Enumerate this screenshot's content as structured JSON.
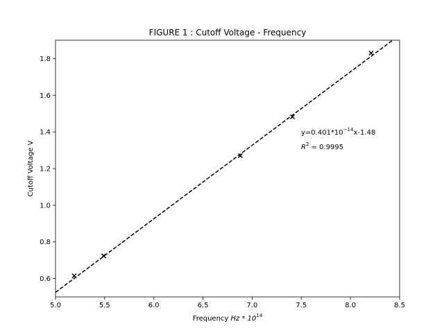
{
  "chart_data": {
    "type": "scatter",
    "title": "FIGURE 1 : Cutoff Voltage - Frequency",
    "xlabel": "Frequency",
    "xlabel_math": "Hz * 10",
    "xlabel_exp": "14",
    "ylabel": "Cutoff Voltage V",
    "xlim": [
      5.0,
      8.5
    ],
    "ylim": [
      0.5,
      1.9
    ],
    "xticks": [
      5.0,
      5.5,
      6.0,
      6.5,
      7.0,
      7.5,
      8.0,
      8.5
    ],
    "xtick_labels": [
      "5.0",
      "5.5",
      "6.0",
      "6.5",
      "7.0",
      "7.5",
      "8.0",
      "8.5"
    ],
    "yticks": [
      0.6,
      0.8,
      1.0,
      1.2,
      1.4,
      1.6,
      1.8
    ],
    "ytick_labels": [
      "0.6",
      "0.8",
      "1.0",
      "1.2",
      "1.4",
      "1.6",
      "1.8"
    ],
    "grid": false,
    "marker": "x",
    "marker_color": "#000000",
    "points": [
      {
        "x": 5.19,
        "y": 0.615
      },
      {
        "x": 5.49,
        "y": 0.724
      },
      {
        "x": 6.88,
        "y": 1.27
      },
      {
        "x": 7.41,
        "y": 1.482
      },
      {
        "x": 8.21,
        "y": 1.83
      }
    ],
    "fit": {
      "slope": 0.401,
      "intercept": -1.48,
      "style": "dashed",
      "color": "#000000"
    },
    "annotation": {
      "eq_prefix": "y=0.401*10",
      "eq_exp": "−14",
      "eq_suffix": "x-1.48",
      "r2_label": "R",
      "r2_exp": "2",
      "r2_value": " = 0.9995"
    }
  }
}
